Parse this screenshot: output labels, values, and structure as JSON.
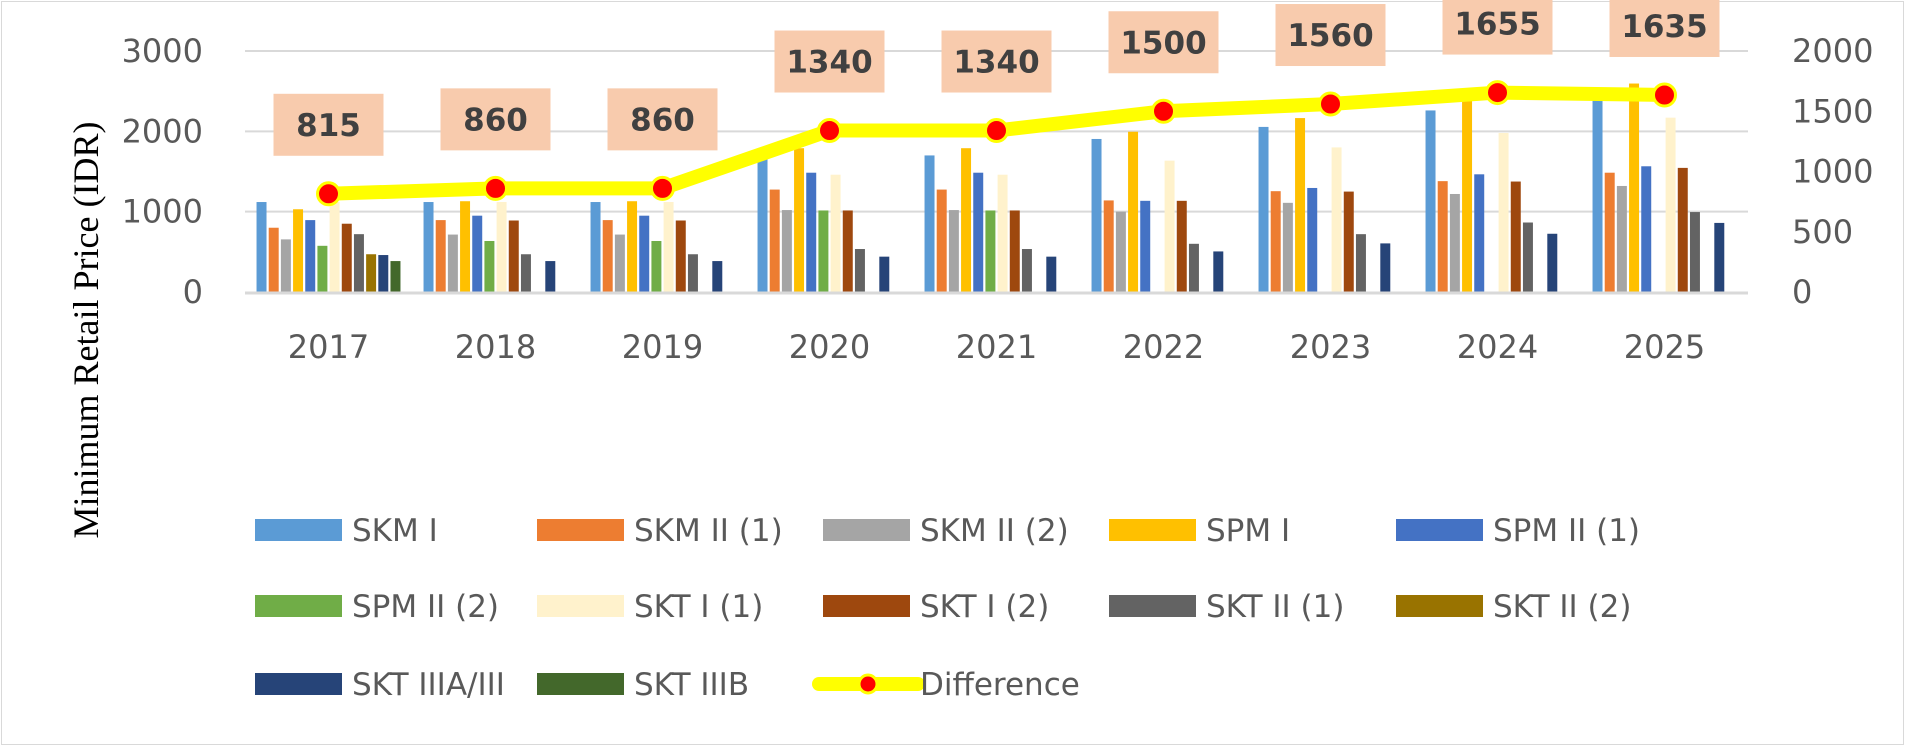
{
  "chart_data": {
    "type": "bar",
    "title": "",
    "xlabel": "",
    "ylabel": "Minimum Retail Price (IDR)",
    "ylim": [
      0,
      3000
    ],
    "y2lim": [
      0,
      2000
    ],
    "yticks": [
      0,
      1000,
      2000,
      3000
    ],
    "y2ticks": [
      0,
      500,
      1000,
      1500,
      2000
    ],
    "grid": true,
    "legend_position": "bottom",
    "categories": [
      "2017",
      "2018",
      "2019",
      "2020",
      "2021",
      "2022",
      "2023",
      "2024",
      "2025"
    ],
    "series": [
      {
        "name": "SKM I",
        "color": "#5b9bd5",
        "values": [
          1120,
          1120,
          1120,
          1700,
          1700,
          1905,
          2055,
          2260,
          2495
        ]
      },
      {
        "name": "SKM II (1)",
        "color": "#ed7d31",
        "values": [
          800,
          895,
          895,
          1275,
          1275,
          1140,
          1255,
          1380,
          1485
        ]
      },
      {
        "name": "SKM II (2)",
        "color": "#a5a5a5",
        "values": [
          655,
          715,
          715,
          1020,
          1020,
          1000,
          1110,
          1220,
          1320
        ]
      },
      {
        "name": "SPM I",
        "color": "#ffc000",
        "values": [
          1030,
          1130,
          1130,
          1790,
          1790,
          1995,
          2165,
          2385,
          2595
        ]
      },
      {
        "name": "SPM II (1)",
        "color": "#4472c4",
        "values": [
          895,
          950,
          950,
          1485,
          1485,
          1135,
          1295,
          1465,
          1565
        ]
      },
      {
        "name": "SPM II (2)",
        "color": "#70ad47",
        "values": [
          575,
          635,
          635,
          1015,
          1015,
          null,
          null,
          null,
          null
        ]
      },
      {
        "name": "SKT I (1)",
        "color": "#fff2cc",
        "values": [
          1120,
          1120,
          1120,
          1460,
          1460,
          1635,
          1800,
          1980,
          2170
        ]
      },
      {
        "name": "SKT I (2)",
        "color": "#9e480e",
        "values": [
          850,
          890,
          890,
          1015,
          1015,
          1135,
          1250,
          1375,
          1545
        ]
      },
      {
        "name": "SKT II (1)",
        "color": "#636363",
        "values": [
          720,
          470,
          470,
          535,
          535,
          600,
          720,
          865,
          995
        ]
      },
      {
        "name": "SKT II (2)",
        "color": "#997300",
        "values": [
          470,
          null,
          null,
          null,
          null,
          null,
          null,
          null,
          null
        ]
      },
      {
        "name": "SKT IIIA/III",
        "color": "#264478",
        "values": [
          460,
          385,
          385,
          440,
          440,
          505,
          605,
          725,
          860
        ]
      },
      {
        "name": "SKT IIIB",
        "color": "#43682b",
        "values": [
          385,
          null,
          null,
          null,
          null,
          null,
          null,
          null,
          null
        ]
      }
    ],
    "line_series": {
      "name": "Difference",
      "axis": "secondary",
      "color": "#ffff00",
      "marker_color": "#ff0000",
      "values": [
        815,
        860,
        860,
        1340,
        1340,
        1500,
        1560,
        1655,
        1635
      ],
      "labels": [
        "815",
        "860",
        "860",
        "1340",
        "1340",
        "1500",
        "1560",
        "1655",
        "1635"
      ],
      "label_bg": "#f8cbad"
    }
  }
}
